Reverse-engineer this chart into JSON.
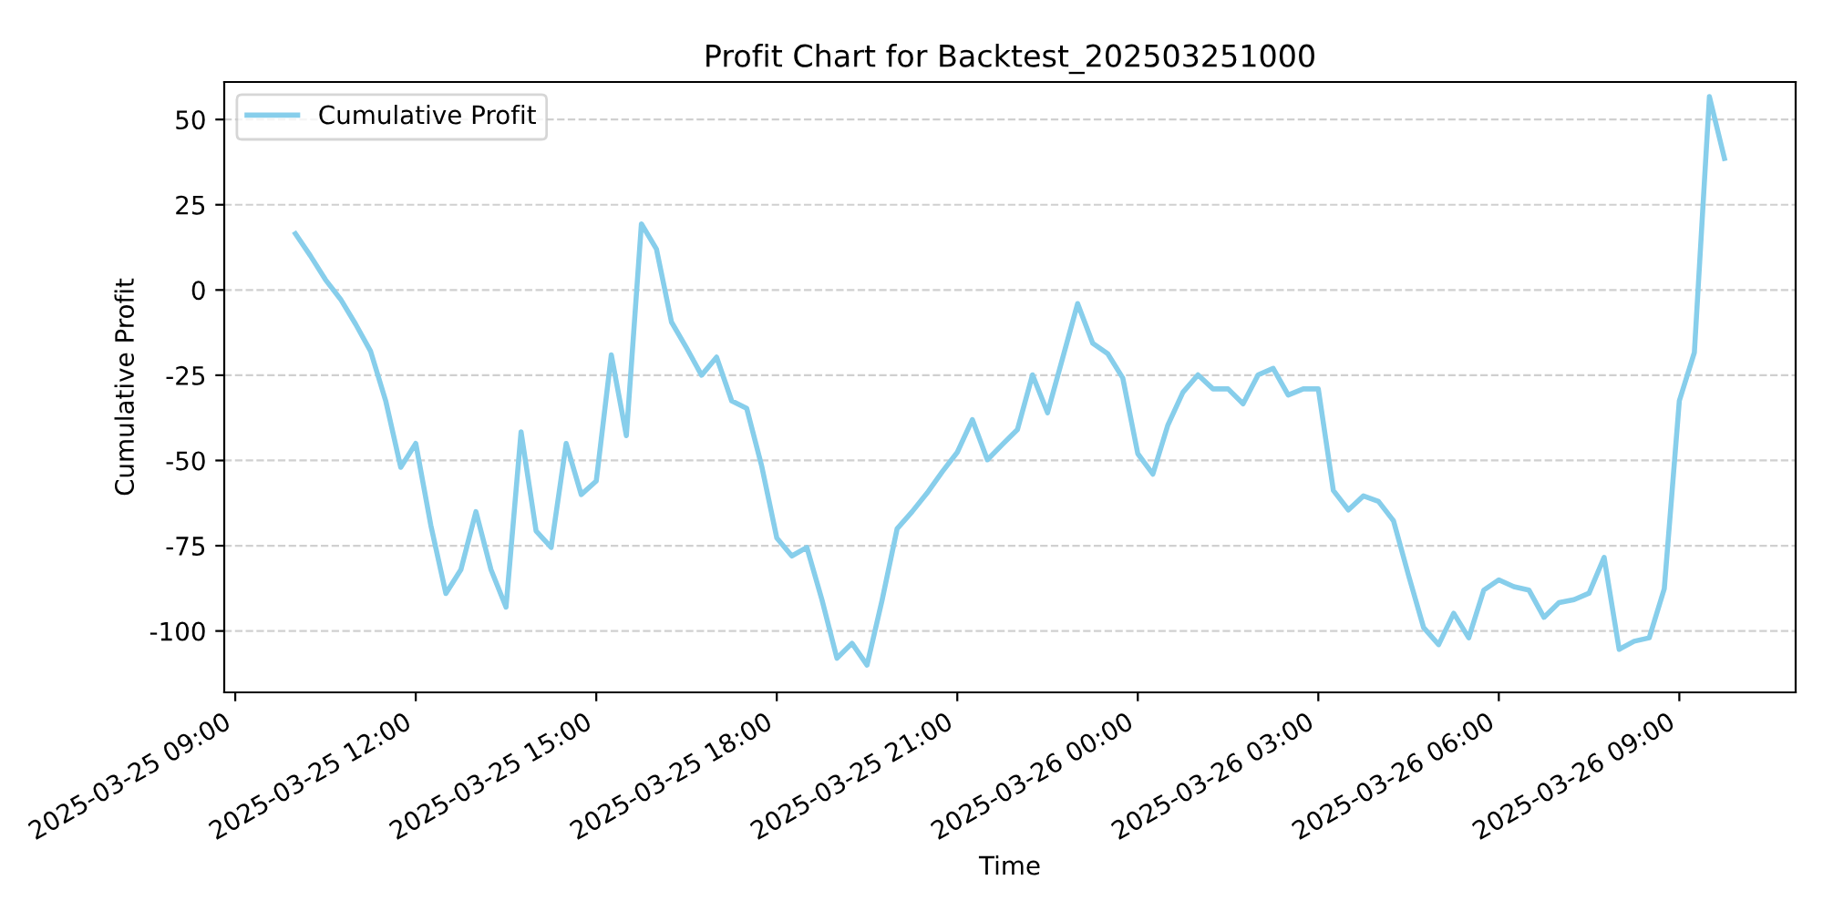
{
  "chart_data": {
    "type": "line",
    "title": "Profit Chart for Backtest_202503251000",
    "xlabel": "Time",
    "ylabel": "Cumulative Profit",
    "x": [
      "2025-03-25T10:00",
      "2025-03-25T10:15",
      "2025-03-25T10:30",
      "2025-03-25T10:45",
      "2025-03-25T11:00",
      "2025-03-25T11:15",
      "2025-03-25T11:30",
      "2025-03-25T11:45",
      "2025-03-25T12:00",
      "2025-03-25T12:15",
      "2025-03-25T12:30",
      "2025-03-25T12:45",
      "2025-03-25T13:00",
      "2025-03-25T13:15",
      "2025-03-25T13:30",
      "2025-03-25T13:45",
      "2025-03-25T14:00",
      "2025-03-25T14:15",
      "2025-03-25T14:30",
      "2025-03-25T14:45",
      "2025-03-25T15:00",
      "2025-03-25T15:15",
      "2025-03-25T15:30",
      "2025-03-25T15:45",
      "2025-03-25T16:00",
      "2025-03-25T16:15",
      "2025-03-25T16:30",
      "2025-03-25T16:45",
      "2025-03-25T17:00",
      "2025-03-25T17:15",
      "2025-03-25T17:30",
      "2025-03-25T17:45",
      "2025-03-25T18:00",
      "2025-03-25T18:15",
      "2025-03-25T18:30",
      "2025-03-25T18:45",
      "2025-03-25T19:00",
      "2025-03-25T19:15",
      "2025-03-25T19:30",
      "2025-03-25T19:45",
      "2025-03-25T20:00",
      "2025-03-25T20:15",
      "2025-03-25T20:30",
      "2025-03-25T20:45",
      "2025-03-25T21:00",
      "2025-03-25T21:15",
      "2025-03-25T21:30",
      "2025-03-25T21:45",
      "2025-03-25T22:00",
      "2025-03-25T22:15",
      "2025-03-25T22:30",
      "2025-03-25T22:45",
      "2025-03-25T23:00",
      "2025-03-25T23:15",
      "2025-03-25T23:30",
      "2025-03-25T23:45",
      "2025-03-26T00:00",
      "2025-03-26T00:15",
      "2025-03-26T00:30",
      "2025-03-26T00:45",
      "2025-03-26T01:00",
      "2025-03-26T01:15",
      "2025-03-26T01:30",
      "2025-03-26T01:45",
      "2025-03-26T02:00",
      "2025-03-26T02:15",
      "2025-03-26T02:30",
      "2025-03-26T02:45",
      "2025-03-26T03:00",
      "2025-03-26T03:15",
      "2025-03-26T03:30",
      "2025-03-26T03:45",
      "2025-03-26T04:00",
      "2025-03-26T04:15",
      "2025-03-26T04:30",
      "2025-03-26T04:45",
      "2025-03-26T05:00",
      "2025-03-26T05:15",
      "2025-03-26T05:30",
      "2025-03-26T05:45",
      "2025-03-26T06:00",
      "2025-03-26T06:15",
      "2025-03-26T06:30",
      "2025-03-26T06:45",
      "2025-03-26T07:00",
      "2025-03-26T07:15",
      "2025-03-26T07:30",
      "2025-03-26T07:45",
      "2025-03-26T08:00",
      "2025-03-26T08:15",
      "2025-03-26T08:30",
      "2025-03-26T08:45",
      "2025-03-26T09:00",
      "2025-03-26T09:15",
      "2025-03-26T09:30",
      "2025-03-26T09:45"
    ],
    "series": [
      {
        "name": "Cumulative Profit",
        "color": "#87ceeb",
        "values": [
          16.5,
          10,
          3,
          -2.7,
          -10,
          -18,
          -32.5,
          -52,
          -45,
          -69,
          -89,
          -82,
          -65,
          -82,
          -93,
          -41.6,
          -70.7,
          -75.5,
          -45,
          -60,
          -56,
          -19,
          -42.7,
          19.4,
          12,
          -9.4,
          -17,
          -25,
          -19.7,
          -32.5,
          -34.7,
          -51.7,
          -72.7,
          -78,
          -75.5,
          -90.8,
          -108,
          -103.6,
          -110,
          -91,
          -70,
          -65,
          -59.5,
          -53.3,
          -47.6,
          -38,
          -49.8,
          -45.3,
          -40.9,
          -24.9,
          -36,
          -20,
          -4,
          -15.6,
          -18.7,
          -25.8,
          -48,
          -54,
          -39.6,
          -30,
          -24.9,
          -29,
          -29,
          -33.4,
          -24.9,
          -23,
          -30.8,
          -29,
          -29,
          -58.8,
          -64.5,
          -60.4,
          -62,
          -67.7,
          -83.7,
          -99,
          -104,
          -94.8,
          -102,
          -88,
          -85,
          -87,
          -88,
          -96,
          -91.7,
          -90.8,
          -88.9,
          -78.4,
          -105.4,
          -103,
          -102,
          -87.6,
          -32.5,
          -18.3,
          56.7,
          38.6
        ]
      }
    ],
    "xlim": [
      "2025-03-25T08:49",
      "2025-03-26T10:56"
    ],
    "xticks": [
      {
        "value": "2025-03-25T09:00",
        "label": "2025-03-25 09:00"
      },
      {
        "value": "2025-03-25T12:00",
        "label": "2025-03-25 12:00"
      },
      {
        "value": "2025-03-25T15:00",
        "label": "2025-03-25 15:00"
      },
      {
        "value": "2025-03-25T18:00",
        "label": "2025-03-25 18:00"
      },
      {
        "value": "2025-03-25T21:00",
        "label": "2025-03-25 21:00"
      },
      {
        "value": "2025-03-26T00:00",
        "label": "2025-03-26 00:00"
      },
      {
        "value": "2025-03-26T03:00",
        "label": "2025-03-26 03:00"
      },
      {
        "value": "2025-03-26T06:00",
        "label": "2025-03-26 06:00"
      },
      {
        "value": "2025-03-26T09:00",
        "label": "2025-03-26 09:00"
      }
    ],
    "ylim": [
      -118,
      61
    ],
    "yticks": [
      -100,
      -75,
      -50,
      -25,
      0,
      25,
      50
    ],
    "grid": "y",
    "legend": "top left",
    "line_style": "solid",
    "marker": "none"
  }
}
